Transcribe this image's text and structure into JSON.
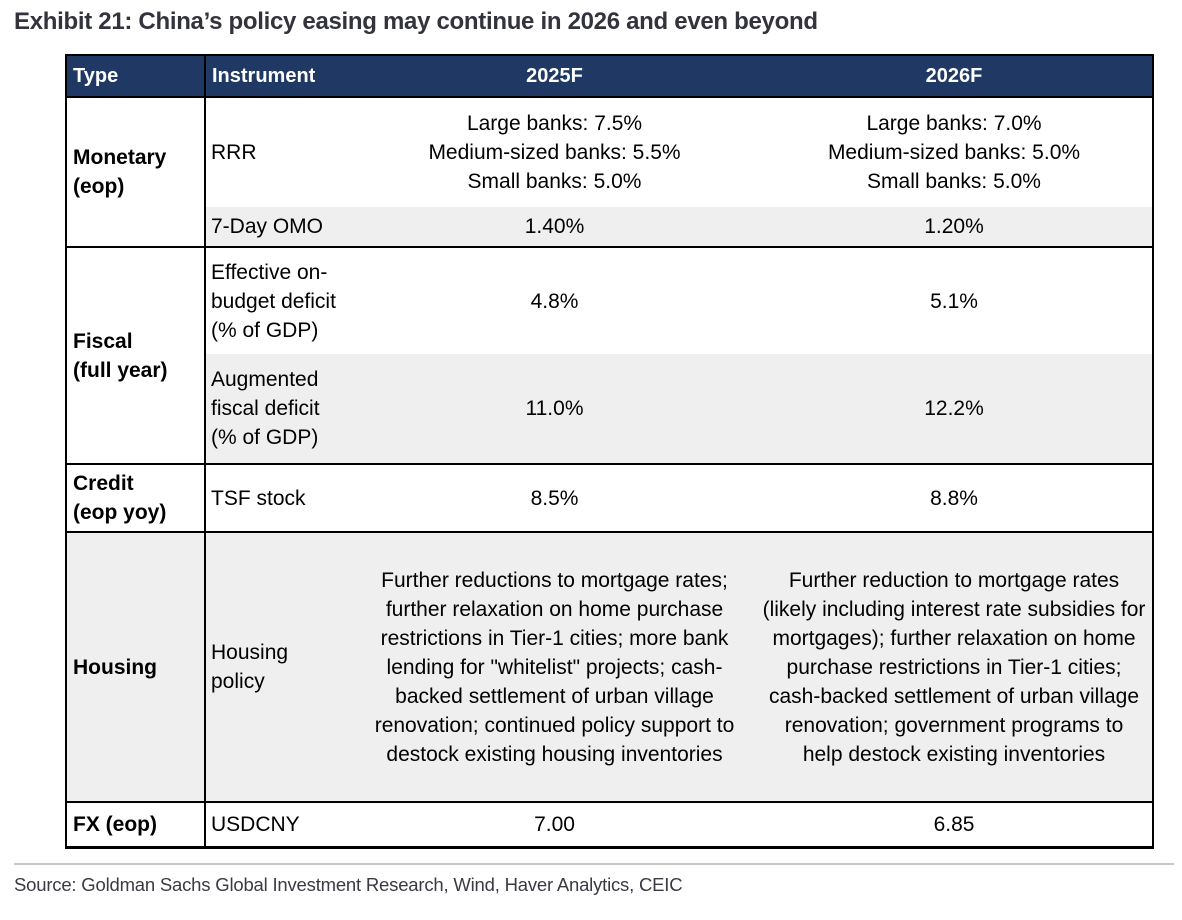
{
  "title": "Exhibit 21: China’s policy easing may continue in 2026 and even beyond",
  "source_line": "Source: Goldman Sachs Global Investment Research, Wind, Haver Analytics, CEIC",
  "colors": {
    "header_bg": "#1f3864",
    "header_text": "#ffffff",
    "stripe_bg": "#efefef",
    "border": "#000000",
    "title_text": "#33333d",
    "source_text": "#3a3a44",
    "rule": "#c9c9c9"
  },
  "table": {
    "headers": {
      "type": "Type",
      "instrument": "Instrument",
      "y2025": "2025F",
      "y2026": "2026F"
    },
    "sections": [
      {
        "type": "Monetary\n(eop)",
        "rows": [
          {
            "instrument": "RRR",
            "y2025": "Large banks: 7.5%\nMedium-sized banks: 5.5%\nSmall banks: 5.0%",
            "y2026": "Large banks: 7.0%\nMedium-sized banks: 5.0%\nSmall banks: 5.0%"
          },
          {
            "instrument": "7-Day OMO",
            "y2025": "1.40%",
            "y2026": "1.20%"
          }
        ]
      },
      {
        "type": "Fiscal\n(full year)",
        "rows": [
          {
            "instrument": "Effective on-\nbudget deficit\n(% of GDP)",
            "y2025": "4.8%",
            "y2026": "5.1%"
          },
          {
            "instrument": "Augmented\nfiscal deficit\n(% of GDP)",
            "y2025": "11.0%",
            "y2026": "12.2%"
          }
        ]
      },
      {
        "type": "Credit\n(eop yoy)",
        "rows": [
          {
            "instrument": "TSF stock",
            "y2025": "8.5%",
            "y2026": "8.8%"
          }
        ]
      },
      {
        "type": "Housing",
        "rows": [
          {
            "instrument": "Housing\npolicy",
            "y2025": "Further reductions to mortgage rates; further relaxation on home purchase restrictions in Tier-1 cities; more bank lending for \"whitelist\" projects; cash-backed settlement of urban village renovation; continued policy support to destock existing housing inventories",
            "y2026": "Further reduction to mortgage rates (likely including interest rate subsidies for mortgages); further relaxation on home purchase restrictions in Tier-1 cities; cash-backed settlement of urban village renovation; government programs to help destock existing inventories"
          }
        ]
      },
      {
        "type": "FX (eop)",
        "rows": [
          {
            "instrument": "USDCNY",
            "y2025": "7.00",
            "y2026": "6.85"
          }
        ]
      }
    ]
  }
}
